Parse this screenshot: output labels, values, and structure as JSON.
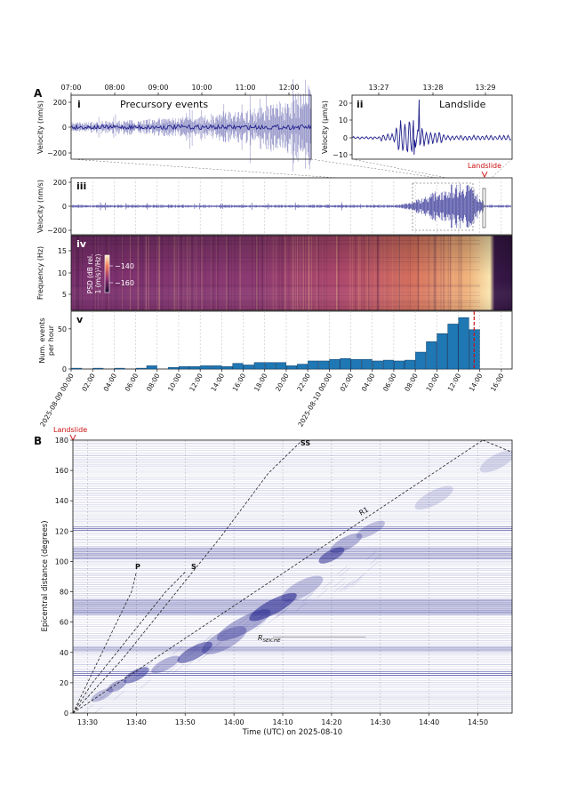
{
  "panel_a": {
    "letter": "A",
    "i": {
      "roman": "i",
      "title": "Precursory events",
      "ylabel": "Velocity (nm/s)",
      "xticks": [
        "07:00",
        "08:00",
        "09:00",
        "10:00",
        "11:00",
        "12:00"
      ],
      "yticks": [
        "200",
        "0",
        "−200"
      ]
    },
    "ii": {
      "roman": "ii",
      "title": "Landslide",
      "ylabel": "Velocity (μm/s)",
      "xticks": [
        "13:27",
        "13:28",
        "13:29"
      ],
      "yticks": [
        "20",
        "10",
        "0",
        "−10"
      ]
    },
    "iii": {
      "roman": "iii",
      "ylabel": "Velocity (nm/s)",
      "yticks": [
        "200",
        "0",
        "−200"
      ],
      "landslide_marker": "Landslide"
    },
    "iv": {
      "roman": "iv",
      "ylabel": "Frequency (Hz)",
      "yticks": [
        "15",
        "10",
        "5"
      ],
      "colorbar_label_1": "PSD (dB rel.",
      "colorbar_label_2": "1 (m/s)²/Hz)",
      "colorbar_ticks": [
        "−140",
        "−160"
      ]
    },
    "v": {
      "roman": "v",
      "ylabel_1": "Num. events",
      "ylabel_2": "per hour",
      "yticks": [
        "50",
        "0"
      ],
      "xticks": [
        "2025-08-09 00:00",
        "02:00",
        "04:00",
        "06:00",
        "08:00",
        "10:00",
        "12:00",
        "14:00",
        "16:00",
        "18:00",
        "20:00",
        "22:00",
        "2025-08-10 00:00",
        "02:00",
        "04:00",
        "06:00",
        "08:00",
        "10:00",
        "12:00",
        "14:00",
        "16:00"
      ]
    }
  },
  "panel_b": {
    "letter": "B",
    "landslide_label": "Landslide",
    "xlabel": "Time (UTC) on 2025-08-10",
    "ylabel": "Epicentral distance (degrees)",
    "xticks": [
      "13:30",
      "13:40",
      "13:50",
      "14:00",
      "14:10",
      "14:20",
      "14:30",
      "14:40",
      "14:50"
    ],
    "yticks": [
      "180",
      "160",
      "140",
      "120",
      "100",
      "80",
      "60",
      "40",
      "20",
      "0"
    ],
    "phase_labels": {
      "p": "P",
      "s": "S",
      "ss": "SS",
      "r1": "R1",
      "seiche": "R",
      "seiche_sub": "SEICHE"
    }
  },
  "colors": {
    "waveform": "#1f1f8c",
    "bar": "#1f77b4",
    "landslide": "#cc1111",
    "grid": "#b8b8b8"
  },
  "chart_data": [
    {
      "type": "bar",
      "panel": "A-v",
      "title": "",
      "xlabel": "",
      "ylabel": "Num. events per hour",
      "x_unit": "hours since 2025-08-09 00:00",
      "categories": [
        "2025-08-09 00:00",
        "01:00",
        "02:00",
        "03:00",
        "04:00",
        "05:00",
        "06:00",
        "07:00",
        "08:00",
        "09:00",
        "10:00",
        "11:00",
        "12:00",
        "13:00",
        "14:00",
        "15:00",
        "16:00",
        "17:00",
        "18:00",
        "19:00",
        "20:00",
        "21:00",
        "22:00",
        "23:00",
        "2025-08-10 00:00",
        "01:00",
        "02:00",
        "03:00",
        "04:00",
        "05:00",
        "06:00",
        "07:00",
        "08:00",
        "09:00",
        "10:00",
        "11:00",
        "12:00",
        "13:00"
      ],
      "values": [
        1,
        0,
        1,
        0,
        1,
        0,
        1,
        4,
        0,
        2,
        3,
        3,
        4,
        4,
        3,
        7,
        5,
        8,
        8,
        8,
        4,
        6,
        10,
        10,
        12,
        13,
        12,
        12,
        10,
        11,
        10,
        11,
        21,
        34,
        44,
        56,
        64,
        49
      ],
      "ylim": [
        0,
        72
      ],
      "landslide_time": "2025-08-10 13:28",
      "grid": true
    },
    {
      "type": "line",
      "panel": "B",
      "xlabel": "Time (UTC) on 2025-08-10",
      "ylabel": "Epicentral distance (degrees)",
      "xlim": [
        "13:27",
        "14:57"
      ],
      "ylim": [
        0,
        180
      ],
      "series": [
        {
          "name": "P",
          "x": [
            "13:27",
            "13:30",
            "13:33",
            "13:36",
            "13:39",
            "13:40"
          ],
          "y": [
            0,
            20,
            40,
            60,
            80,
            93
          ]
        },
        {
          "name": "S",
          "x": [
            "13:27",
            "13:31",
            "13:36",
            "13:41",
            "13:46",
            "13:50"
          ],
          "y": [
            0,
            20,
            40,
            60,
            80,
            93
          ]
        },
        {
          "name": "SS",
          "x": [
            "13:27",
            "13:37",
            "13:47",
            "13:57",
            "14:07",
            "14:14"
          ],
          "y": [
            0,
            35,
            75,
            115,
            158,
            180
          ]
        },
        {
          "name": "R1",
          "x": [
            "13:27",
            "14:51"
          ],
          "y": [
            0,
            180
          ]
        }
      ]
    }
  ]
}
